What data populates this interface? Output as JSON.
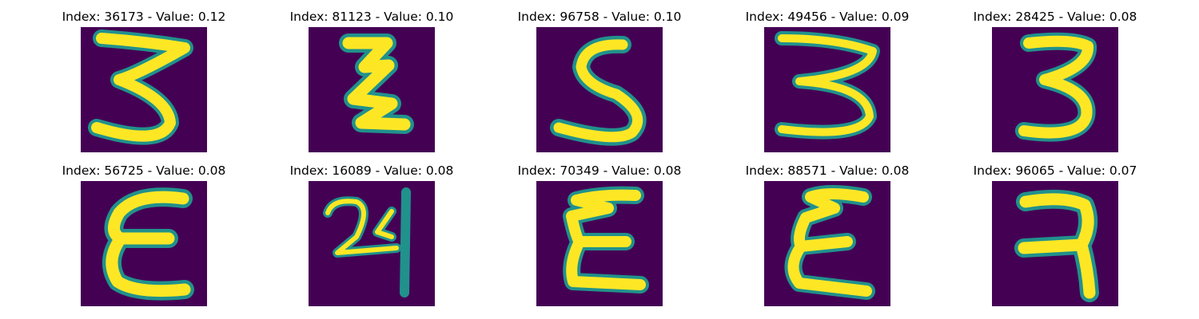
{
  "panels": [
    {
      "index": "36173",
      "value": "0.12",
      "title": "Index: 36173 - Value: 0.12",
      "glyph": "Z-3"
    },
    {
      "index": "81123",
      "value": "0.10",
      "title": "Index: 81123 - Value: 0.10",
      "glyph": "zigzag-Z"
    },
    {
      "index": "96758",
      "value": "0.10",
      "title": "Index: 96758 - Value: 0.10",
      "glyph": "S"
    },
    {
      "index": "49456",
      "value": "0.09",
      "title": "Index: 49456 - Value: 0.09",
      "glyph": "3"
    },
    {
      "index": "28425",
      "value": "0.08",
      "title": "Index: 28425 - Value: 0.08",
      "glyph": "3"
    },
    {
      "index": "56725",
      "value": "0.08",
      "title": "Index: 56725 - Value: 0.08",
      "glyph": "epsilon"
    },
    {
      "index": "16089",
      "value": "0.08",
      "title": "Index: 16089 - Value: 0.08",
      "glyph": "24-like"
    },
    {
      "index": "70349",
      "value": "0.08",
      "title": "Index: 70349 - Value: 0.08",
      "glyph": "epsilon"
    },
    {
      "index": "88571",
      "value": "0.08",
      "title": "Index: 88571 - Value: 0.08",
      "glyph": "epsilon"
    },
    {
      "index": "96065",
      "value": "0.07",
      "title": "Index: 96065 - Value: 0.07",
      "glyph": "reversed-2"
    }
  ],
  "colors": {
    "background": "#440154",
    "stroke_core": "#fde725",
    "stroke_edge": "#21918c",
    "stroke_mid": "#5ec962"
  }
}
